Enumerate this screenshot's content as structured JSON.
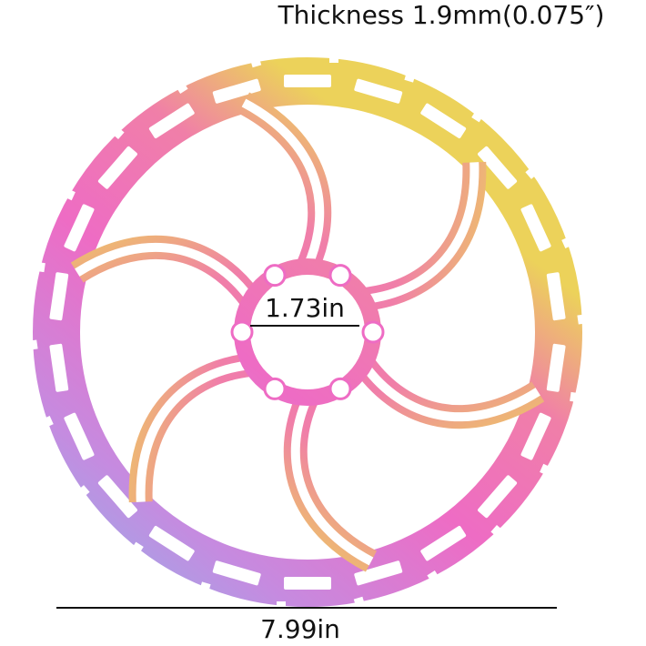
{
  "annotations": {
    "thickness": "Thickness 1.9mm(0.075″)",
    "inner_diameter": "1.73in",
    "outer_diameter": "7.99in"
  }
}
